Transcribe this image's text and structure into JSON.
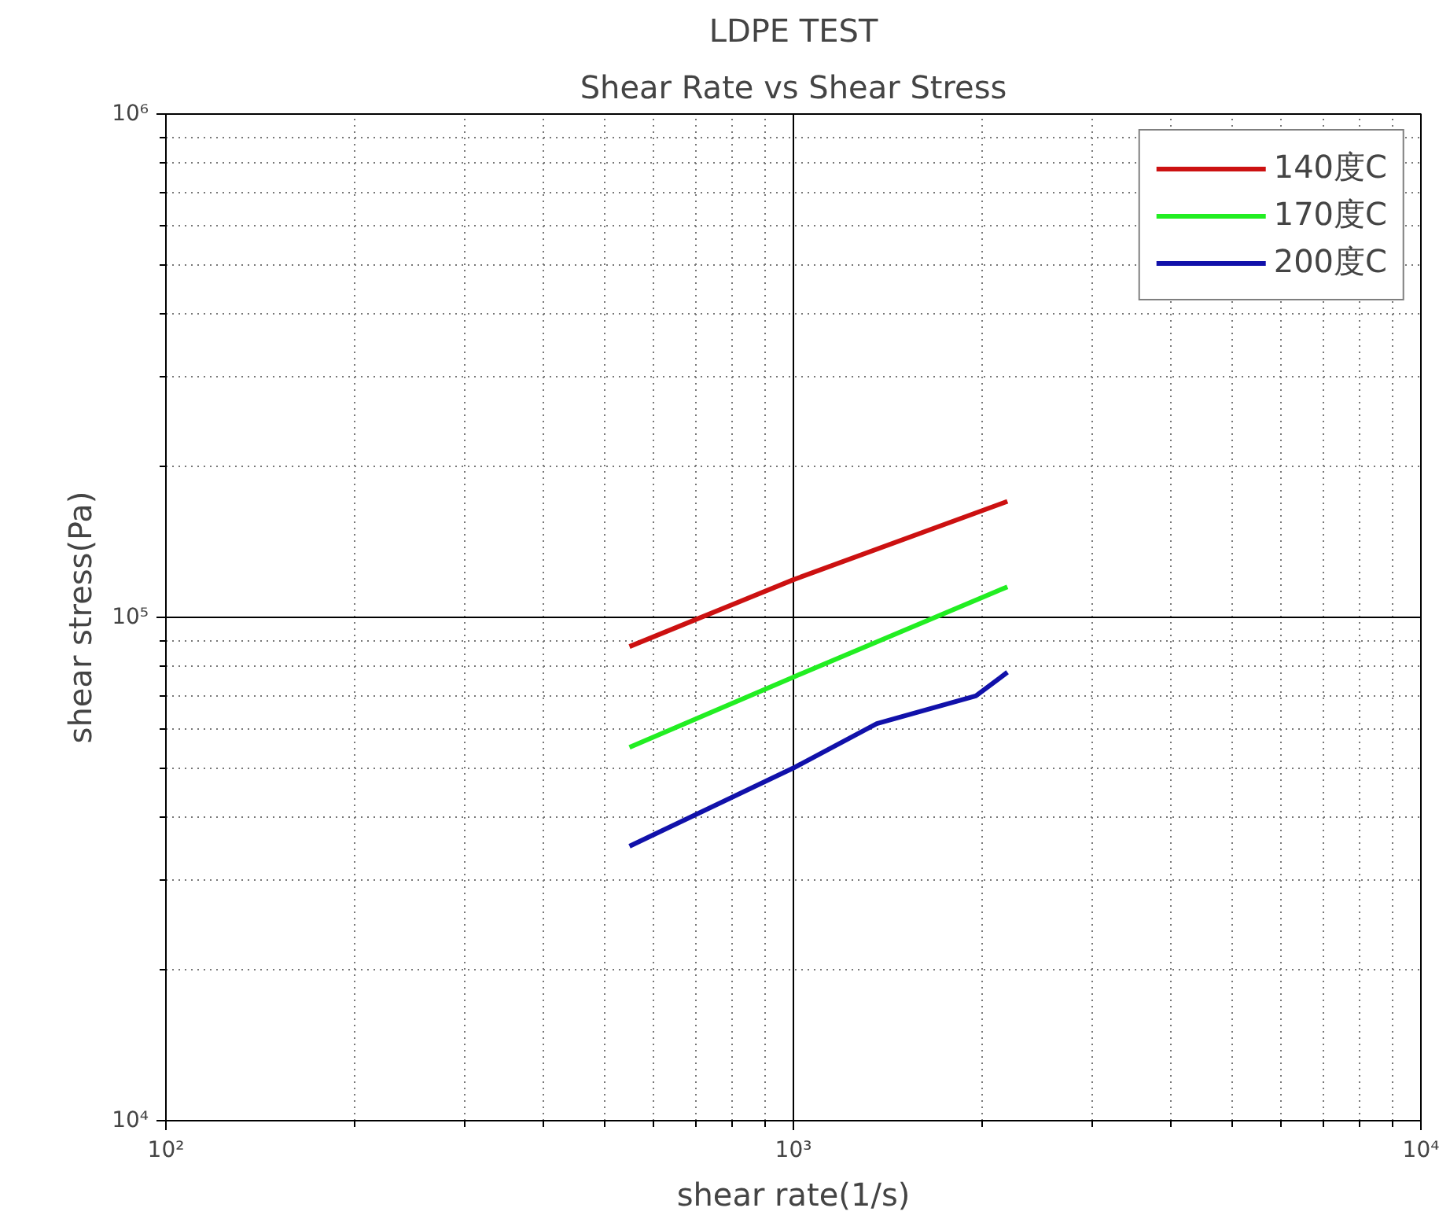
{
  "chart_data": {
    "type": "line",
    "title": "LDPE TEST",
    "subtitle": "Shear Rate vs Shear Stress",
    "xlabel": "shear rate(1/s)",
    "ylabel": "shear stress(Pa)",
    "log": "xy",
    "xlim": [
      100,
      10000
    ],
    "ylim": [
      10000,
      1000000
    ],
    "xticks": [
      {
        "value": 100,
        "label": "10²"
      },
      {
        "value": 1000,
        "label": "10³"
      },
      {
        "value": 10000,
        "label": "10⁴"
      }
    ],
    "yticks": [
      {
        "value": 10000,
        "label": "10⁴"
      },
      {
        "value": 100000,
        "label": "10⁵"
      },
      {
        "value": 1000000,
        "label": "10⁶"
      }
    ],
    "grid": true,
    "legend": "top right",
    "line_style": "solid",
    "marker": "none",
    "series": [
      {
        "name": "140度C",
        "color": "#cc1111",
        "x": [
          548,
          1000,
          2193
        ],
        "values": [
          87500,
          118800,
          170000
        ]
      },
      {
        "name": "170度C",
        "color": "#22ee22",
        "x": [
          548,
          1000,
          2193
        ],
        "values": [
          55200,
          76100,
          115000
        ]
      },
      {
        "name": "200度C",
        "color": "#1111aa",
        "x": [
          548,
          1000,
          1358,
          1953,
          2193
        ],
        "values": [
          35100,
          50200,
          61500,
          69800,
          77800
        ]
      }
    ]
  }
}
